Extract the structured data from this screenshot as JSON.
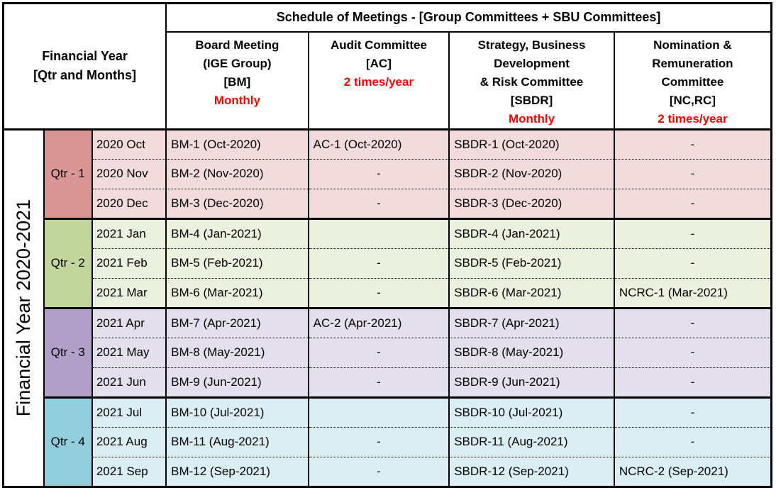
{
  "header": {
    "corner": {
      "line1": "Financial Year",
      "line2": "[Qtr and Months]"
    },
    "title": "Schedule of Meetings - [Group Committees + SBU Committees]",
    "columns": [
      {
        "lines": [
          "Board Meeting",
          "(IGE Group)",
          "[BM]"
        ],
        "frequency": "Monthly"
      },
      {
        "lines": [
          "Audit Committee",
          "[AC]"
        ],
        "frequency": "2 times/year"
      },
      {
        "lines": [
          "Strategy, Business",
          "Development",
          "& Risk Committee",
          "[SBDR]"
        ],
        "frequency": "Monthly"
      },
      {
        "lines": [
          "Nomination &",
          "Remuneration",
          "Committee",
          "[NC,RC]"
        ],
        "frequency": "2 times/year"
      }
    ]
  },
  "body": {
    "year_label": "Financial Year 2020-2021",
    "quarters": [
      {
        "label": "Qtr - 1"
      },
      {
        "label": "Qtr - 2"
      },
      {
        "label": "Qtr - 3"
      },
      {
        "label": "Qtr - 4"
      }
    ],
    "rows": [
      {
        "month": "2020 Oct",
        "bm": "BM-1 (Oct-2020)",
        "ac": "AC-1 (Oct-2020)",
        "sbdr": "SBDR-1 (Oct-2020)",
        "ncrc": "-"
      },
      {
        "month": "2020 Nov",
        "bm": "BM-2 (Nov-2020)",
        "ac": "-",
        "sbdr": "SBDR-2 (Nov-2020)",
        "ncrc": "-"
      },
      {
        "month": "2020 Dec",
        "bm": "BM-3 (Dec-2020)",
        "ac": "-",
        "sbdr": "SBDR-3 (Dec-2020)",
        "ncrc": "-"
      },
      {
        "month": "2021 Jan",
        "bm": "BM-4 (Jan-2021)",
        "ac": "",
        "sbdr": "SBDR-4 (Jan-2021)",
        "ncrc": "-"
      },
      {
        "month": "2021 Feb",
        "bm": "BM-5 (Feb-2021)",
        "ac": "-",
        "sbdr": "SBDR-5 (Feb-2021)",
        "ncrc": "-"
      },
      {
        "month": "2021 Mar",
        "bm": "BM-6 (Mar-2021)",
        "ac": "-",
        "sbdr": "SBDR-6 (Mar-2021)",
        "ncrc": "NCRC-1 (Mar-2021)"
      },
      {
        "month": "2021 Apr",
        "bm": "BM-7 (Apr-2021)",
        "ac": "AC-2 (Apr-2021)",
        "sbdr": "SBDR-7 (Apr-2021)",
        "ncrc": "-"
      },
      {
        "month": "2021 May",
        "bm": "BM-8 (May-2021)",
        "ac": "-",
        "sbdr": "SBDR-8 (May-2021)",
        "ncrc": "-"
      },
      {
        "month": "2021 Jun",
        "bm": "BM-9 (Jun-2021)",
        "ac": "-",
        "sbdr": "SBDR-9 (Jun-2021)",
        "ncrc": "-"
      },
      {
        "month": "2021 Jul",
        "bm": "BM-10 (Jul-2021)",
        "ac": "",
        "sbdr": "SBDR-10 (Jul-2021)",
        "ncrc": "-"
      },
      {
        "month": "2021 Aug",
        "bm": "BM-11 (Aug-2021)",
        "ac": "-",
        "sbdr": "SBDR-11 (Aug-2021)",
        "ncrc": "-"
      },
      {
        "month": "2021 Sep",
        "bm": "BM-12 (Sep-2021)",
        "ac": "-",
        "sbdr": "SBDR-12 (Sep-2021)",
        "ncrc": "NCRC-2 (Sep-2021)"
      }
    ]
  },
  "colors": {
    "accent_red": "#FF0000",
    "border": "#000000",
    "q1_band": "#D99694",
    "q1_row": "#F2DCDB",
    "q2_band": "#C3D69B",
    "q2_row": "#EBF1DE",
    "q3_band": "#B1A0C7",
    "q3_row": "#E4DFEC",
    "q4_band": "#92CDDC",
    "q4_row": "#DAEEF3"
  }
}
